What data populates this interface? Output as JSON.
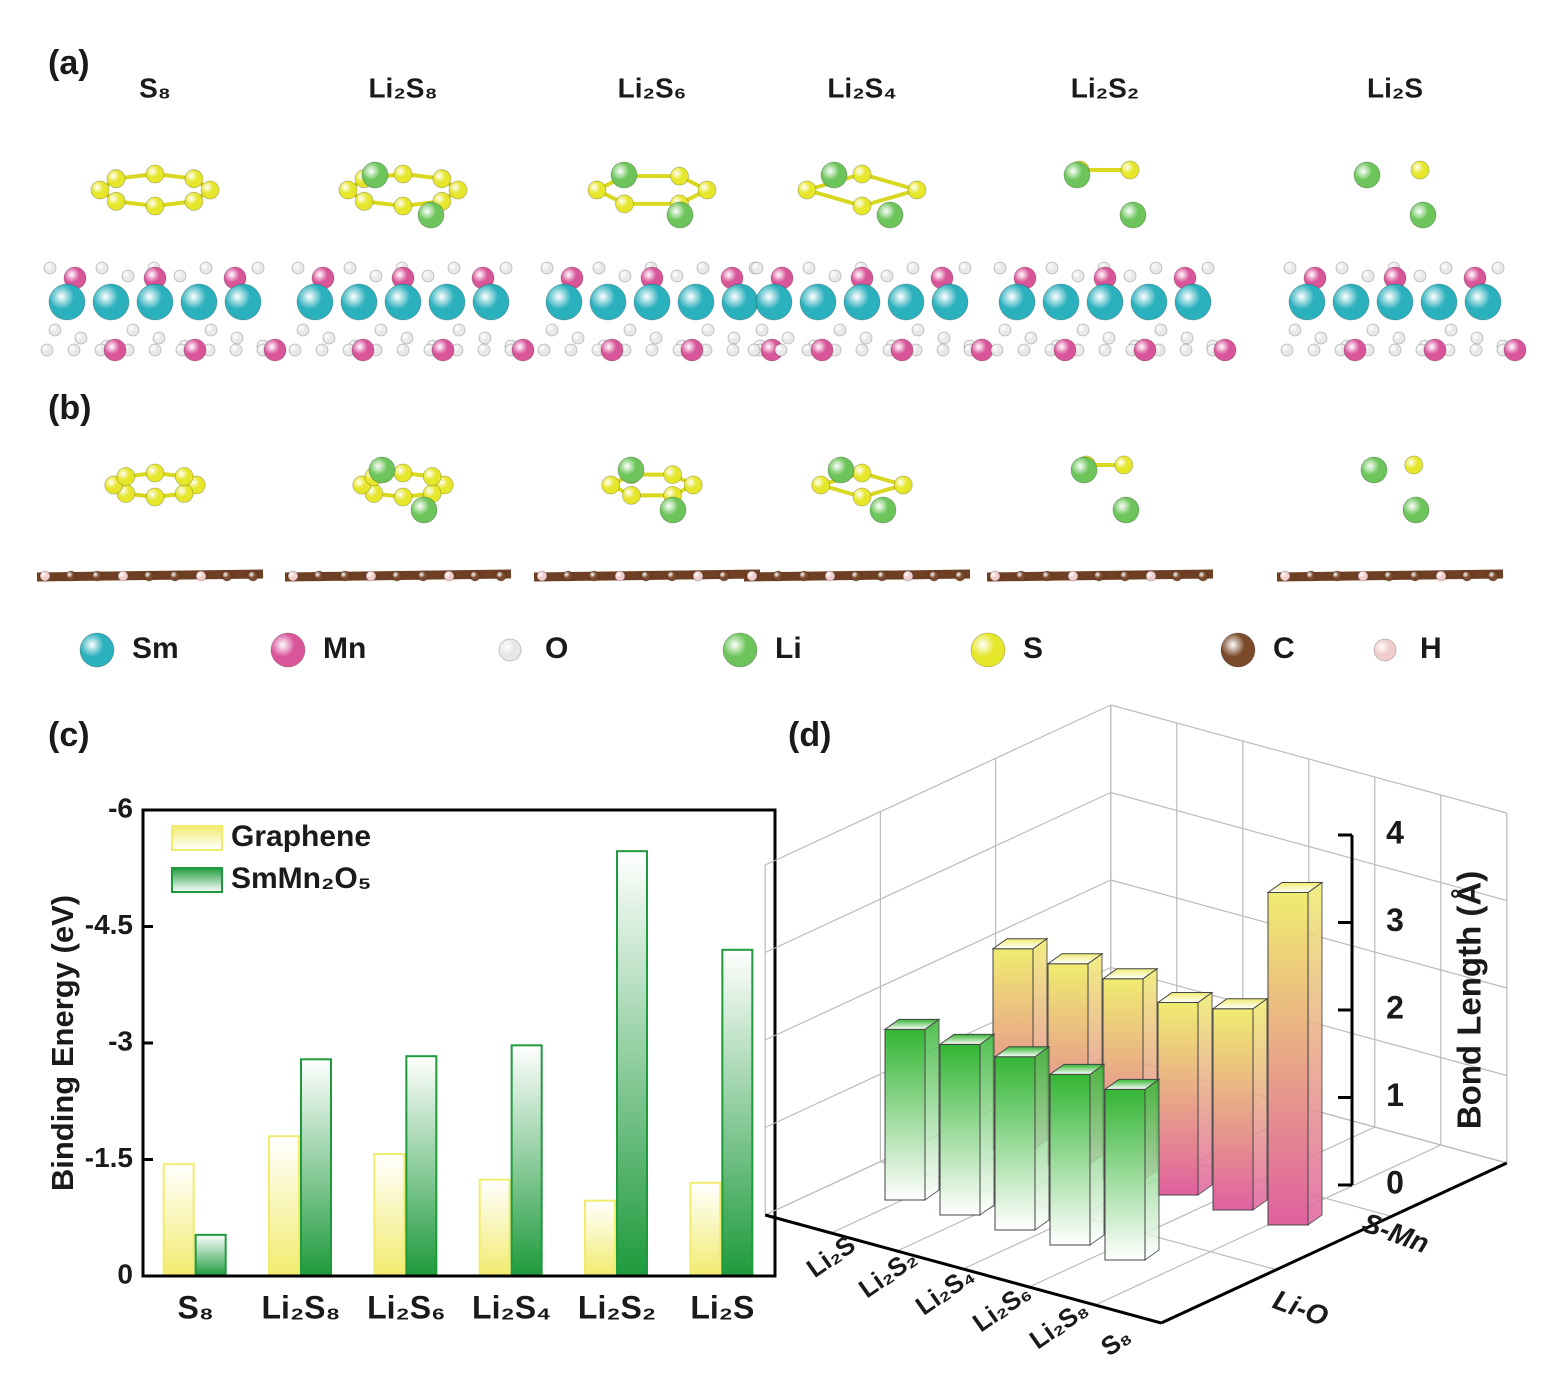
{
  "panel_labels": {
    "a": "(a)",
    "b": "(b)",
    "c": "(c)",
    "d": "(d)"
  },
  "structures": [
    "S₈",
    "Li₂S₈",
    "Li₂S₆",
    "Li₂S₄",
    "Li₂S₂",
    "Li₂S"
  ],
  "atom_legend": [
    {
      "name": "Sm",
      "color": "#2bb0bd"
    },
    {
      "name": "Mn",
      "color": "#d9559a"
    },
    {
      "name": "O",
      "color": "#e8e8e8"
    },
    {
      "name": "Li",
      "color": "#6cc45a"
    },
    {
      "name": "S",
      "color": "#e6e62a"
    },
    {
      "name": "C",
      "color": "#7a4a2a"
    },
    {
      "name": "H",
      "color": "#f0cccc"
    }
  ],
  "chart_data": [
    {
      "type": "bar",
      "ylabel": "Binding Energy (eV)",
      "categories": [
        "S₈",
        "Li₂S₈",
        "Li₂S₆",
        "Li₂S₄",
        "Li₂S₂",
        "Li₂S"
      ],
      "series": [
        {
          "name": "Graphene",
          "color": "#f2ec6e",
          "values": [
            -1.44,
            -1.8,
            -1.57,
            -1.24,
            -0.97,
            -1.2
          ]
        },
        {
          "name": "SmMn₂O₅",
          "color": "#1e9a3c",
          "values": [
            -0.53,
            -2.79,
            -2.83,
            -2.97,
            -5.47,
            -4.2
          ]
        }
      ],
      "ylim": [
        0,
        -6
      ],
      "yticks": [
        0,
        -1.5,
        -3,
        -4.5,
        -6
      ],
      "legend": "upper left"
    },
    {
      "type": "bar3d",
      "zlabel": "Bond Length (Å)",
      "categories": [
        "Li₂S",
        "Li₂S₂",
        "Li₂S₄",
        "Li₂S₆",
        "Li₂S₈",
        "S₈"
      ],
      "series": [
        {
          "name": "Li-O",
          "colors": [
            "#33b533",
            "#ffffff"
          ],
          "values": [
            1.95,
            1.95,
            1.98,
            1.95,
            1.95,
            null
          ]
        },
        {
          "name": "S-Mn",
          "colors": [
            "#f0ec70",
            "#e0609f"
          ],
          "values": [
            2.3,
            2.3,
            2.3,
            2.2,
            2.3,
            3.8
          ]
        }
      ],
      "zlim": [
        0,
        4
      ],
      "zticks": [
        0,
        1,
        2,
        3,
        4
      ]
    }
  ]
}
